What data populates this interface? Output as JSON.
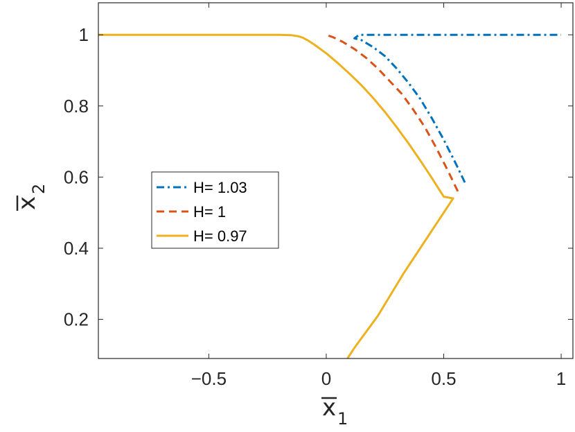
{
  "chart_data": {
    "type": "line",
    "title": "",
    "xlabel": "x",
    "xlabel_sub": "1",
    "ylabel": "x",
    "ylabel_sub": "2",
    "xlim": [
      -0.97,
      1.05
    ],
    "ylim": [
      0.09,
      1.09
    ],
    "xticks": [
      -0.5,
      0,
      0.5,
      1
    ],
    "xtick_labels": [
      "−0.5",
      "0",
      "0.5",
      "1"
    ],
    "yticks": [
      0.2,
      0.4,
      0.6,
      0.8,
      1
    ],
    "ytick_labels": [
      "0.2",
      "0.4",
      "0.6",
      "0.8",
      "1"
    ],
    "grid": false,
    "legend_position": "center-left",
    "series": [
      {
        "name": "H= 1.03",
        "color": "#0072BD",
        "style": "dashdot",
        "x": [
          0.59,
          0.55,
          0.5,
          0.45,
          0.4,
          0.35,
          0.3,
          0.25,
          0.2,
          0.15,
          0.12,
          0.14,
          0.3,
          0.5,
          0.7,
          0.9,
          1.0
        ],
        "y": [
          0.585,
          0.64,
          0.705,
          0.765,
          0.82,
          0.865,
          0.905,
          0.94,
          0.965,
          0.985,
          0.99,
          1.0,
          1.0,
          1.0,
          1.0,
          1.0,
          1.0
        ]
      },
      {
        "name": "H= 1",
        "color": "#D95319",
        "style": "dashed",
        "x": [
          0.56,
          0.52,
          0.47,
          0.42,
          0.37,
          0.32,
          0.27,
          0.22,
          0.17,
          0.12,
          0.07,
          0.03,
          0.0
        ],
        "y": [
          0.56,
          0.615,
          0.68,
          0.74,
          0.79,
          0.835,
          0.87,
          0.905,
          0.935,
          0.96,
          0.98,
          0.993,
          1.0
        ]
      },
      {
        "name": "H= 0.97",
        "color": "#EDB120",
        "style": "solid",
        "x": [
          -0.97,
          -0.5,
          -0.2,
          -0.15,
          -0.12,
          -0.1,
          -0.08,
          -0.05,
          0.0,
          0.05,
          0.1,
          0.15,
          0.2,
          0.25,
          0.3,
          0.35,
          0.4,
          0.45,
          0.5,
          0.54,
          0.44,
          0.33,
          0.22,
          0.12,
          0.09
        ],
        "y": [
          1.0,
          1.0,
          1.0,
          0.999,
          0.996,
          0.992,
          0.985,
          0.972,
          0.948,
          0.92,
          0.89,
          0.858,
          0.822,
          0.783,
          0.74,
          0.695,
          0.647,
          0.597,
          0.545,
          0.54,
          0.44,
          0.33,
          0.21,
          0.12,
          0.09
        ]
      }
    ]
  }
}
